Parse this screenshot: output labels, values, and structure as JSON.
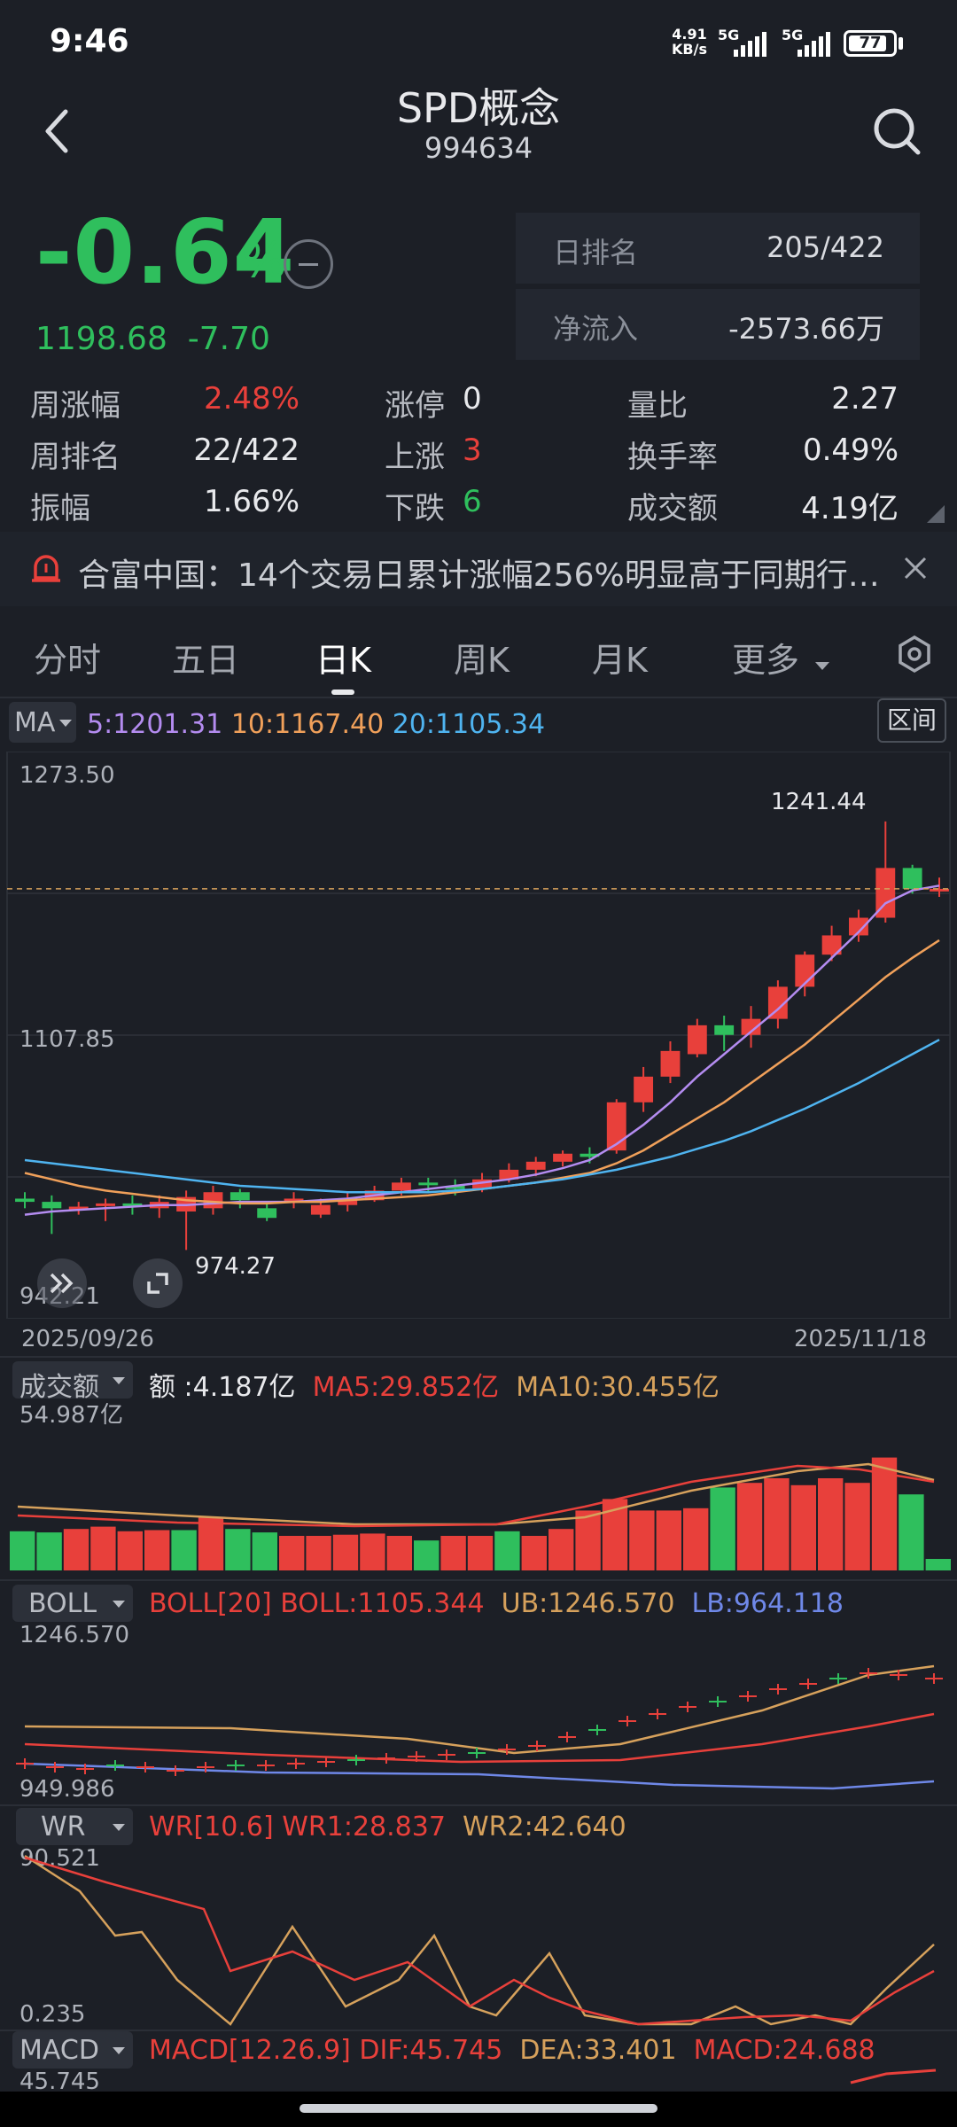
{
  "status_bar": {
    "time": "9:46",
    "net_speed_value": "4.91",
    "net_speed_unit": "KB/s",
    "signal1": "5G",
    "signal2": "5G",
    "battery": "77"
  },
  "header": {
    "title": "SPD概念",
    "code": "994634"
  },
  "quote": {
    "change_pct": "-0.64",
    "pct_sign": "%",
    "price": "1198.68",
    "change": "-7.70",
    "day_rank_label": "日排名",
    "day_rank_value": "205/422",
    "net_inflow_label": "净流入",
    "net_inflow_value": "-2573.66万"
  },
  "stats": {
    "week_change_label": "周涨幅",
    "week_change_value": "2.48%",
    "week_rank_label": "周排名",
    "week_rank_value": "22/422",
    "amplitude_label": "振幅",
    "amplitude_value": "1.66%",
    "limit_up_label": "涨停",
    "limit_up_value": "0",
    "rise_label": "上涨",
    "rise_value": "3",
    "fall_label": "下跌",
    "fall_value": "6",
    "volume_ratio_label": "量比",
    "volume_ratio_value": "2.27",
    "turnover_label": "换手率",
    "turnover_value": "0.49%",
    "amount_label": "成交额",
    "amount_value": "4.19亿"
  },
  "news": {
    "text": "合富中国：14个交易日累计涨幅256%明显高于同期行…"
  },
  "tabs": [
    "分时",
    "五日",
    "日K",
    "周K",
    "月K",
    "更多"
  ],
  "active_tab": "日K",
  "ma_legend": {
    "selector": "MA",
    "ma5": "5:1201.31",
    "ma10": "10:1167.40",
    "ma20": "20:1105.34",
    "range_button": "区间"
  },
  "kline": {
    "y_top": "1273.50",
    "y_mid": "1107.85",
    "y_bottom": "942.21",
    "high_label": "1241.44",
    "low_label": "974.27",
    "date_start": "2025/09/26",
    "date_end": "2025/11/18"
  },
  "volume": {
    "selector": "成交额",
    "amount": "额 :4.187亿",
    "ma5": "MA5:29.852亿",
    "ma10": "MA10:30.455亿",
    "y_top": "54.987亿"
  },
  "boll": {
    "selector": "BOLL",
    "params": "BOLL[20] BOLL:1105.344",
    "ub": "UB:1246.570",
    "lb": "LB:964.118",
    "y_top": "1246.570",
    "y_bottom": "949.986"
  },
  "wr": {
    "selector": "WR",
    "params": "WR[10.6] WR1:28.837",
    "wr2": "WR2:42.640",
    "y_top": "90.521",
    "y_bottom": "0.235"
  },
  "macd": {
    "selector": "MACD",
    "params": "MACD[12.26.9] DIF:45.745",
    "dea": "DEA:33.401",
    "macd": "MACD:24.688",
    "y_top": "45.745"
  },
  "colors": {
    "up": "#e8403b",
    "down": "#2fbf5d",
    "ma5": "#b48cf0",
    "ma10": "#f0a05a",
    "ma20": "#4fb4f0"
  },
  "chart_data": {
    "type": "candlestick",
    "title": "",
    "x_start": "2025/09/26",
    "x_end": "2025/11/18",
    "ylim": [
      942.21,
      1273.5
    ],
    "candles": [
      [
        1006,
        1004,
        1010,
        1000
      ],
      [
        1004,
        1000,
        1008,
        984
      ],
      [
        1000,
        1001,
        1004,
        996
      ],
      [
        1002,
        1003,
        1006,
        992
      ],
      [
        1003,
        1002,
        1008,
        996
      ],
      [
        1000,
        1004,
        1008,
        994
      ],
      [
        998,
        1007,
        1011,
        974
      ],
      [
        1000,
        1010,
        1014,
        996
      ],
      [
        1010,
        1005,
        1012,
        1000
      ],
      [
        1000,
        994,
        1004,
        992
      ],
      [
        1004,
        1006,
        1010,
        1000
      ],
      [
        996,
        1002,
        1006,
        994
      ],
      [
        1002,
        1005,
        1010,
        998
      ],
      [
        1005,
        1011,
        1014,
        1004
      ],
      [
        1011,
        1016,
        1019,
        1008
      ],
      [
        1016,
        1015,
        1019,
        1010
      ],
      [
        1014,
        1012,
        1018,
        1008
      ],
      [
        1012,
        1018,
        1022,
        1010
      ],
      [
        1018,
        1024,
        1028,
        1016
      ],
      [
        1024,
        1029,
        1032,
        1020
      ],
      [
        1029,
        1034,
        1036,
        1026
      ],
      [
        1034,
        1032,
        1038,
        1028
      ],
      [
        1036,
        1066,
        1068,
        1034
      ],
      [
        1066,
        1082,
        1088,
        1060
      ],
      [
        1082,
        1098,
        1104,
        1078
      ],
      [
        1096,
        1114,
        1118,
        1094
      ],
      [
        1114,
        1108,
        1120,
        1098
      ],
      [
        1108,
        1118,
        1126,
        1100
      ],
      [
        1118,
        1138,
        1142,
        1112
      ],
      [
        1138,
        1158,
        1160,
        1132
      ],
      [
        1158,
        1170,
        1176,
        1154
      ],
      [
        1170,
        1181,
        1186,
        1166
      ],
      [
        1181,
        1212,
        1241,
        1178
      ],
      [
        1212,
        1199,
        1214,
        1196
      ],
      [
        1199,
        1199,
        1206,
        1194
      ]
    ],
    "ma5": [
      996,
      998,
      999,
      1000,
      1001,
      1002,
      1002,
      1003,
      1004,
      1004,
      1004,
      1005,
      1006,
      1008,
      1010,
      1012,
      1014,
      1016,
      1018,
      1021,
      1025,
      1030,
      1040,
      1052,
      1066,
      1082,
      1096,
      1110,
      1124,
      1140,
      1156,
      1172,
      1190,
      1198,
      1201
    ],
    "ma10": [
      1022,
      1018,
      1014,
      1011,
      1009,
      1007,
      1005,
      1004,
      1003,
      1003,
      1004,
      1004,
      1005,
      1006,
      1007,
      1008,
      1010,
      1012,
      1014,
      1016,
      1019,
      1022,
      1028,
      1036,
      1046,
      1056,
      1066,
      1078,
      1090,
      1102,
      1116,
      1130,
      1144,
      1156,
      1167
    ],
    "ma20": [
      1030,
      1028,
      1026,
      1024,
      1022,
      1020,
      1018,
      1016,
      1014,
      1013,
      1012,
      1011,
      1010,
      1010,
      1010,
      1010,
      1011,
      1012,
      1014,
      1016,
      1018,
      1021,
      1024,
      1028,
      1032,
      1037,
      1042,
      1048,
      1055,
      1062,
      1070,
      1078,
      1087,
      1096,
      1105
    ]
  }
}
